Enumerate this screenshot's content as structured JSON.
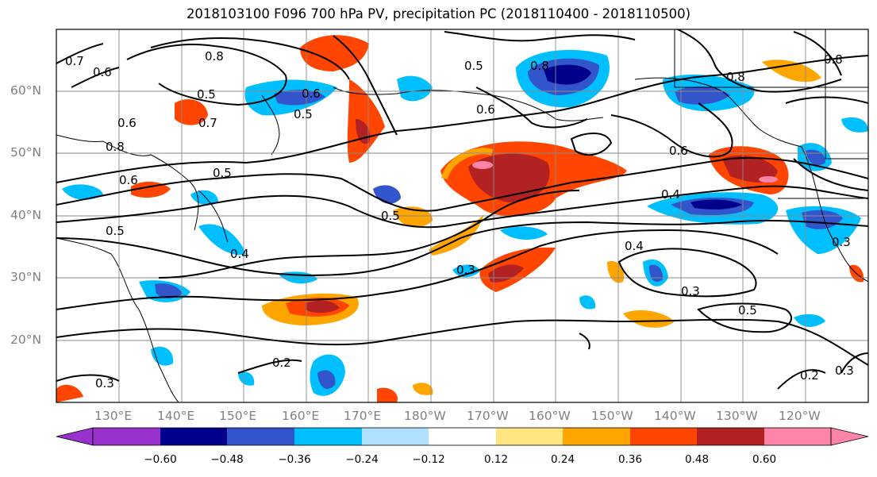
{
  "title": "2018103100 F096 700 hPa PV, precipitation PC (2018110400 - 2018110500)",
  "lat_labels": [
    "60°N",
    "50°N",
    "40°N",
    "30°N",
    "20°N"
  ],
  "lon_labels": [
    "130°E",
    "140°E",
    "150°E",
    "160°E",
    "170°E",
    "180°W",
    "170°W",
    "160°W",
    "150°W",
    "140°W",
    "130°W",
    "120°W"
  ],
  "colorbar": {
    "ticks": [
      "−0.60",
      "−0.48",
      "−0.36",
      "−0.24",
      "−0.12",
      "0.12",
      "0.24",
      "0.36",
      "0.48",
      "0.60"
    ],
    "colors": [
      "#9932cc",
      "#00008b",
      "#3355cc",
      "#00bfff",
      "#b0e2ff",
      "#ffffff",
      "#ffe680",
      "#ffa500",
      "#ff4500",
      "#b22222",
      "#ff85a8"
    ]
  },
  "contour_labels": [
    "0.7",
    "0.6",
    "0.8",
    "0.6",
    "0.5",
    "0.7",
    "0.6",
    "0.8",
    "0.6",
    "0.5",
    "0.5",
    "0.4",
    "0.5",
    "0.6",
    "0.5",
    "0.3",
    "0.4",
    "0.3",
    "0.2",
    "0.5",
    "0.4",
    "0.6",
    "0.3",
    "0.5",
    "0.3",
    "0.2",
    "0.3",
    "0.8",
    "0.8",
    "0.8"
  ]
}
